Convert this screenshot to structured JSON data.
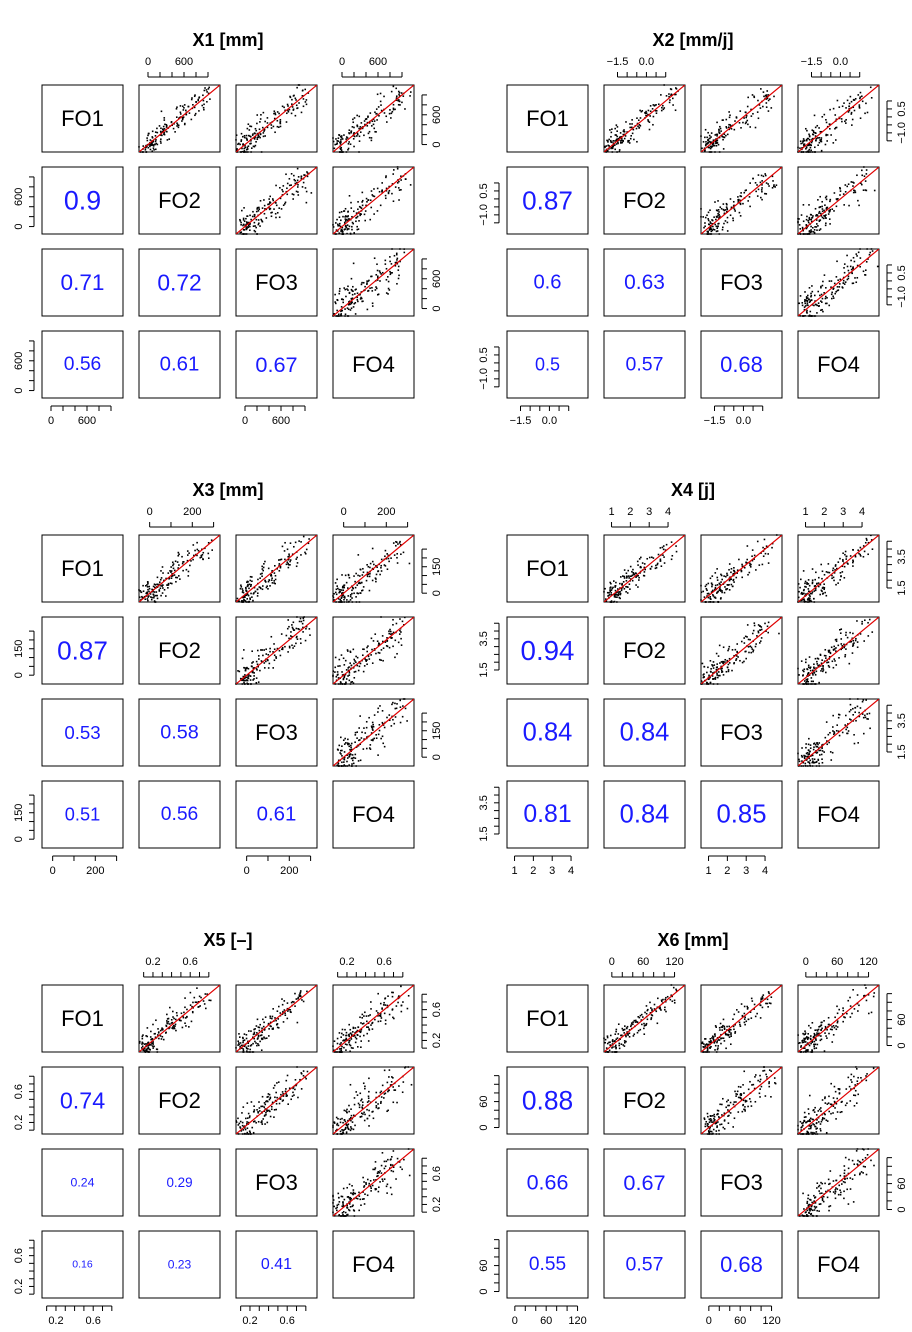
{
  "chart_data": [
    {
      "type": "scatter-matrix",
      "title": "X1 [mm]",
      "variables": [
        "FO1",
        "FO2",
        "FO3",
        "FO4"
      ],
      "correlations": {
        "FO2-FO1": "0.9",
        "FO3-FO1": "0.71",
        "FO3-FO2": "0.72",
        "FO4-FO1": "0.56",
        "FO4-FO2": "0.61",
        "FO4-FO3": "0.67"
      },
      "axis_range": [
        -150,
        1200
      ],
      "ticks": [
        0,
        600
      ],
      "tick_labels": [
        "0",
        "600"
      ],
      "minor_ticks": [
        0,
        200,
        400,
        600,
        800,
        1000
      ],
      "colors": {
        "points": "#000000",
        "fit_line": "#e00000",
        "correlation_text": "#1a1aff"
      }
    },
    {
      "type": "scatter-matrix",
      "title": "X2 [mm/j]",
      "variables": [
        "FO1",
        "FO2",
        "FO3",
        "FO4"
      ],
      "correlations": {
        "FO2-FO1": "0.87",
        "FO3-FO1": "0.6",
        "FO3-FO2": "0.63",
        "FO4-FO1": "0.5",
        "FO4-FO2": "0.57",
        "FO4-FO3": "0.68"
      },
      "axis_range": [
        -2.2,
        2.0
      ],
      "ticks": [
        -1.5,
        0.0
      ],
      "tick_labels": [
        "−1.5",
        "0.0"
      ],
      "minor_ticks": [
        -1.5,
        -1.0,
        -0.5,
        0.0,
        0.5,
        1.0
      ],
      "y_ticks": [
        -1.0,
        0.5
      ],
      "y_tick_labels": [
        "−1.0",
        "0.5"
      ],
      "y_minor_ticks": [
        -1.5,
        -1.0,
        -0.5,
        0.0,
        0.5,
        1.0
      ],
      "colors": {
        "points": "#000000",
        "fit_line": "#e00000",
        "correlation_text": "#1a1aff"
      }
    },
    {
      "type": "scatter-matrix",
      "title": "X3 [mm]",
      "variables": [
        "FO1",
        "FO2",
        "FO3",
        "FO4"
      ],
      "correlations": {
        "FO2-FO1": "0.87",
        "FO3-FO1": "0.53",
        "FO3-FO2": "0.58",
        "FO4-FO1": "0.51",
        "FO4-FO2": "0.56",
        "FO4-FO3": "0.61"
      },
      "axis_range": [
        -50,
        330
      ],
      "ticks": [
        0,
        200
      ],
      "tick_labels": [
        "0",
        "200"
      ],
      "y_ticks": [
        0,
        150
      ],
      "y_tick_labels": [
        "0",
        "150"
      ],
      "minor_ticks": [
        0,
        100,
        200,
        300
      ],
      "y_minor_ticks": [
        0,
        50,
        100,
        150,
        200,
        250
      ],
      "colors": {
        "points": "#000000",
        "fit_line": "#e00000",
        "correlation_text": "#1a1aff"
      }
    },
    {
      "type": "scatter-matrix",
      "title": "X4 [j]",
      "variables": [
        "FO1",
        "FO2",
        "FO3",
        "FO4"
      ],
      "correlations": {
        "FO2-FO1": "0.94",
        "FO3-FO1": "0.84",
        "FO3-FO2": "0.84",
        "FO4-FO1": "0.81",
        "FO4-FO2": "0.84",
        "FO4-FO3": "0.85"
      },
      "axis_range": [
        0.6,
        4.9
      ],
      "ticks": [
        1,
        2,
        3,
        4
      ],
      "tick_labels": [
        "1",
        "2",
        "3",
        "4"
      ],
      "y_ticks": [
        1.5,
        3.5
      ],
      "y_tick_labels": [
        "1.5",
        "3.5"
      ],
      "minor_ticks": [
        1,
        2,
        3,
        4
      ],
      "y_minor_ticks": [
        1.5,
        2.0,
        2.5,
        3.0,
        3.5,
        4.0,
        4.5
      ],
      "colors": {
        "points": "#000000",
        "fit_line": "#e00000",
        "correlation_text": "#1a1aff"
      }
    },
    {
      "type": "scatter-matrix",
      "title": "X5 [–]",
      "variables": [
        "FO1",
        "FO2",
        "FO3",
        "FO4"
      ],
      "correlations": {
        "FO2-FO1": "0.74",
        "FO3-FO1": "0.24",
        "FO3-FO2": "0.29",
        "FO4-FO1": "0.16",
        "FO4-FO2": "0.23",
        "FO4-FO3": "0.41"
      },
      "axis_range": [
        0.05,
        0.92
      ],
      "ticks": [
        0.2,
        0.6
      ],
      "tick_labels": [
        "0.2",
        "0.6"
      ],
      "minor_ticks": [
        0.1,
        0.2,
        0.3,
        0.4,
        0.5,
        0.6,
        0.7,
        0.8
      ],
      "colors": {
        "points": "#000000",
        "fit_line": "#e00000",
        "correlation_text": "#1a1aff"
      }
    },
    {
      "type": "scatter-matrix",
      "title": "X6 [mm]",
      "variables": [
        "FO1",
        "FO2",
        "FO3",
        "FO4"
      ],
      "correlations": {
        "FO2-FO1": "0.88",
        "FO3-FO1": "0.66",
        "FO3-FO2": "0.67",
        "FO4-FO1": "0.55",
        "FO4-FO2": "0.57",
        "FO4-FO3": "0.68"
      },
      "axis_range": [
        -15,
        140
      ],
      "ticks": [
        0,
        60,
        120
      ],
      "tick_labels": [
        "0",
        "60",
        "120"
      ],
      "y_ticks": [
        0,
        60
      ],
      "y_tick_labels": [
        "0",
        "60"
      ],
      "minor_ticks": [
        0,
        20,
        40,
        60,
        80,
        100,
        120
      ],
      "y_minor_ticks": [
        0,
        20,
        40,
        60,
        80,
        100,
        120
      ],
      "colors": {
        "points": "#000000",
        "fit_line": "#e00000",
        "correlation_text": "#1a1aff"
      }
    }
  ]
}
